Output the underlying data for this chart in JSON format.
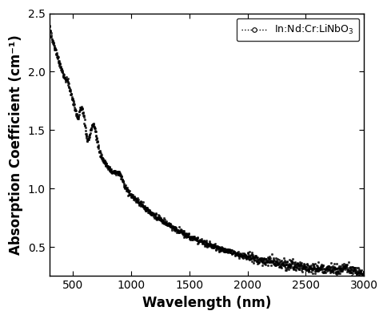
{
  "xlabel": "Wavelength (nm)",
  "ylabel": "Absorption Coefficient (cm⁻¹)",
  "xlim": [
    300,
    3000
  ],
  "ylim": [
    0.25,
    2.5
  ],
  "yticks": [
    0.5,
    1.0,
    1.5,
    2.0,
    2.5
  ],
  "xticks": [
    500,
    1000,
    1500,
    2000,
    2500,
    3000
  ],
  "legend_label": "In:Nd:Cr:LiNbO$_3$",
  "line_color": "#000000",
  "background_color": "#ffffff",
  "label_fontsize": 12
}
